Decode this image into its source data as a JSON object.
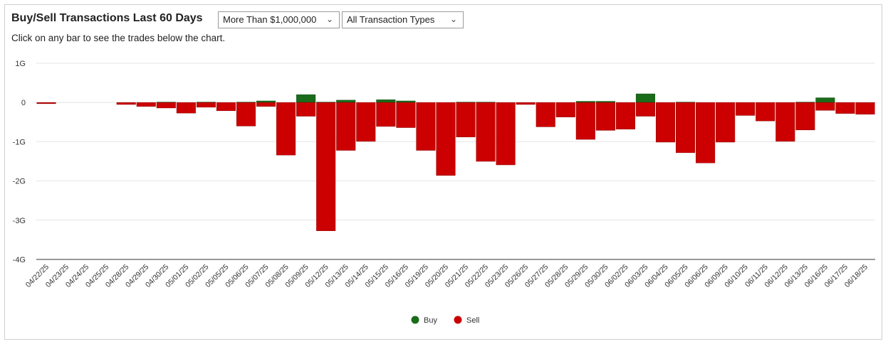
{
  "header": {
    "title": "Buy/Sell Transactions Last 60 Days",
    "subtitle": "Click on any bar to see the trades below the chart."
  },
  "filters": {
    "amount": {
      "selected": "More Than $1,000,000"
    },
    "type": {
      "selected": "All Transaction Types"
    }
  },
  "chart_data": {
    "type": "bar",
    "title": "Buy/Sell Transactions Last 60 Days",
    "xlabel": "",
    "ylabel": "",
    "ylim": [
      -4,
      1
    ],
    "yticks": [
      {
        "value": 1,
        "label": "1G"
      },
      {
        "value": 0,
        "label": "0"
      },
      {
        "value": -1,
        "label": "-1G"
      },
      {
        "value": -2,
        "label": "-2G"
      },
      {
        "value": -3,
        "label": "-3G"
      },
      {
        "value": -4,
        "label": "-4G"
      }
    ],
    "grid": true,
    "legend": "bottom",
    "categories": [
      "04/22/25",
      "04/23/25",
      "04/24/25",
      "04/25/25",
      "04/28/25",
      "04/29/25",
      "04/30/25",
      "05/01/25",
      "05/02/25",
      "05/05/25",
      "05/06/25",
      "05/07/25",
      "05/08/25",
      "05/09/25",
      "05/12/25",
      "05/13/25",
      "05/14/25",
      "05/15/25",
      "05/16/25",
      "05/19/25",
      "05/20/25",
      "05/21/25",
      "05/22/25",
      "05/23/25",
      "05/26/25",
      "05/27/25",
      "05/28/25",
      "05/29/25",
      "05/30/25",
      "06/02/25",
      "06/03/25",
      "06/04/25",
      "06/05/25",
      "06/06/25",
      "06/09/25",
      "06/10/25",
      "06/11/25",
      "06/12/25",
      "06/13/25",
      "06/16/25",
      "06/17/25",
      "06/18/25"
    ],
    "series": [
      {
        "name": "Buy",
        "color": "#1a6b1a",
        "values": [
          0,
          0,
          0,
          0,
          0,
          0,
          0.01,
          0,
          0.01,
          0,
          0.01,
          0.04,
          0,
          0.2,
          0.01,
          0.06,
          0,
          0.07,
          0.04,
          0,
          0,
          0.01,
          0.01,
          0,
          0,
          0,
          0,
          0.03,
          0.03,
          0,
          0.22,
          0,
          0.01,
          0,
          0,
          0,
          0,
          0,
          0.01,
          0.12,
          0,
          0
        ]
      },
      {
        "name": "Sell",
        "color": "#cc0000",
        "values": [
          -0.03,
          0,
          0,
          0,
          -0.05,
          -0.1,
          -0.14,
          -0.27,
          -0.12,
          -0.21,
          -0.6,
          -0.1,
          -1.34,
          -0.35,
          -3.27,
          -1.22,
          -0.99,
          -0.61,
          -0.64,
          -1.22,
          -1.86,
          -0.88,
          -1.5,
          -1.59,
          -0.05,
          -0.62,
          -0.37,
          -0.94,
          -0.71,
          -0.68,
          -0.35,
          -1.01,
          -1.28,
          -1.54,
          -1.01,
          -0.33,
          -0.47,
          -0.99,
          -0.7,
          -0.2,
          -0.28,
          -0.3
        ]
      }
    ]
  }
}
